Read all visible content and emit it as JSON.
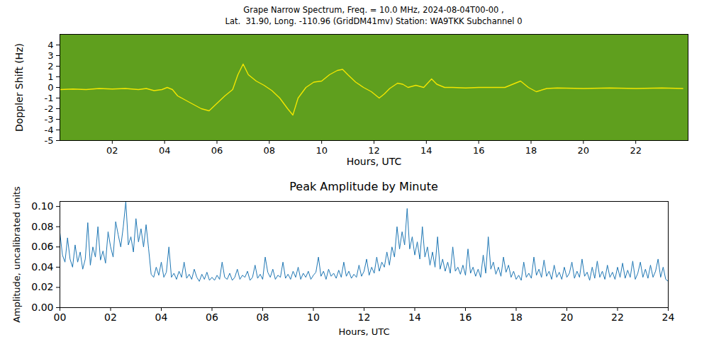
{
  "chart_data": [
    {
      "type": "line",
      "title": "Grape Narrow Spectrum, Freq. = 10.0 MHz, 2024-08-04T00-00 ,",
      "subtitle": "Lat.  31.90, Long. -110.96 (GridDM41mv) Station: WA9TKK Subchannel 0",
      "xlabel": "Hours, UTC",
      "ylabel": "Doppler Shift (Hz)",
      "xlim": [
        0,
        24
      ],
      "xticks": [
        {
          "value": 2,
          "label": "02"
        },
        {
          "value": 4,
          "label": "04"
        },
        {
          "value": 6,
          "label": "06"
        },
        {
          "value": 8,
          "label": "08"
        },
        10,
        12,
        14,
        16,
        18,
        20,
        22
      ],
      "ylim": [
        -5,
        5
      ],
      "yticks": [
        4,
        3,
        2,
        1,
        0,
        -1,
        -2,
        -3,
        -4,
        -5
      ],
      "grid": false,
      "color": "#f2e600",
      "x": [
        0,
        0.5,
        1,
        1.5,
        2,
        2.5,
        3,
        3.3,
        3.6,
        3.9,
        4.1,
        4.3,
        4.5,
        4.8,
        5.1,
        5.4,
        5.7,
        6,
        6.3,
        6.6,
        6.8,
        7,
        7.2,
        7.5,
        7.8,
        8.1,
        8.4,
        8.7,
        8.9,
        9.1,
        9.4,
        9.7,
        10,
        10.3,
        10.6,
        10.8,
        11,
        11.3,
        11.6,
        11.9,
        12.2,
        12.4,
        12.6,
        12.9,
        13.1,
        13.3,
        13.6,
        13.9,
        14.2,
        14.4,
        14.7,
        15,
        15.5,
        16,
        16.5,
        17,
        17.3,
        17.6,
        17.9,
        18.2,
        18.6,
        19,
        20,
        21,
        22,
        23,
        23.8
      ],
      "values": [
        -0.2,
        -0.15,
        -0.2,
        -0.1,
        -0.15,
        -0.1,
        -0.2,
        -0.1,
        -0.3,
        -0.2,
        0,
        -0.2,
        -0.8,
        -1.2,
        -1.6,
        -2,
        -2.2,
        -1.5,
        -0.8,
        -0.2,
        1.2,
        2.2,
        1.2,
        0.6,
        0.2,
        -0.3,
        -1,
        -2,
        -2.6,
        -1,
        0,
        0.5,
        0.6,
        1.2,
        1.6,
        1.7,
        1.2,
        0.5,
        0,
        -0.4,
        -1,
        -0.6,
        -0.1,
        0.4,
        0.3,
        0,
        0.2,
        0,
        0.8,
        0.3,
        0,
        0,
        -0.05,
        0,
        0,
        0,
        0.3,
        0.6,
        0,
        -0.4,
        -0.1,
        -0.05,
        -0.1,
        -0.05,
        -0.1,
        -0.05,
        -0.1
      ]
    },
    {
      "type": "line",
      "title": "Peak Amplitude by Minute",
      "xlabel": "Hours, UTC",
      "ylabel": "Amplitude, uncalibrated units",
      "xlim": [
        0,
        24
      ],
      "xticks": [
        {
          "value": 0,
          "label": "00"
        },
        {
          "value": 2,
          "label": "02"
        },
        {
          "value": 4,
          "label": "04"
        },
        {
          "value": 6,
          "label": "06"
        },
        {
          "value": 8,
          "label": "08"
        },
        10,
        12,
        14,
        16,
        18,
        20,
        22,
        24
      ],
      "ylim": [
        0,
        0.105
      ],
      "yticks": [
        {
          "value": 0,
          "label": "0.00"
        },
        {
          "value": 0.02,
          "label": "0.02"
        },
        {
          "value": 0.04,
          "label": "0.04"
        },
        {
          "value": 0.06,
          "label": "0.06"
        },
        {
          "value": 0.08,
          "label": "0.08"
        },
        {
          "value": 0.1,
          "label": "0.10"
        }
      ],
      "grid": false,
      "color": "#1f77b4",
      "x": [
        0,
        0.1,
        0.2,
        0.3,
        0.4,
        0.5,
        0.6,
        0.7,
        0.8,
        0.9,
        1,
        1.1,
        1.2,
        1.3,
        1.4,
        1.5,
        1.6,
        1.7,
        1.8,
        1.9,
        2,
        2.1,
        2.2,
        2.3,
        2.4,
        2.5,
        2.6,
        2.7,
        2.8,
        2.9,
        3,
        3.1,
        3.2,
        3.3,
        3.4,
        3.5,
        3.6,
        3.7,
        3.8,
        3.9,
        4,
        4.1,
        4.2,
        4.3,
        4.4,
        4.5,
        4.6,
        4.7,
        4.8,
        4.9,
        5,
        5.1,
        5.2,
        5.3,
        5.4,
        5.5,
        5.6,
        5.7,
        5.8,
        5.9,
        6,
        6.1,
        6.2,
        6.3,
        6.4,
        6.5,
        6.6,
        6.7,
        6.8,
        6.9,
        7,
        7.1,
        7.2,
        7.3,
        7.4,
        7.5,
        7.6,
        7.7,
        7.8,
        7.9,
        8,
        8.1,
        8.2,
        8.3,
        8.4,
        8.5,
        8.6,
        8.7,
        8.8,
        8.9,
        9,
        9.1,
        9.2,
        9.3,
        9.4,
        9.5,
        9.6,
        9.7,
        9.8,
        9.9,
        10,
        10.1,
        10.2,
        10.3,
        10.4,
        10.5,
        10.6,
        10.7,
        10.8,
        10.9,
        11,
        11.1,
        11.2,
        11.3,
        11.4,
        11.5,
        11.6,
        11.7,
        11.8,
        11.9,
        12,
        12.1,
        12.2,
        12.3,
        12.4,
        12.5,
        12.6,
        12.7,
        12.8,
        12.9,
        13,
        13.1,
        13.2,
        13.3,
        13.4,
        13.5,
        13.6,
        13.7,
        13.8,
        13.9,
        14,
        14.1,
        14.2,
        14.3,
        14.4,
        14.5,
        14.6,
        14.7,
        14.8,
        14.9,
        15,
        15.1,
        15.2,
        15.3,
        15.4,
        15.5,
        15.6,
        15.7,
        15.8,
        15.9,
        16,
        16.1,
        16.2,
        16.3,
        16.4,
        16.5,
        16.6,
        16.7,
        16.8,
        16.9,
        17,
        17.1,
        17.2,
        17.3,
        17.4,
        17.5,
        17.6,
        17.7,
        17.8,
        17.9,
        18,
        18.1,
        18.2,
        18.3,
        18.4,
        18.5,
        18.6,
        18.7,
        18.8,
        18.9,
        19,
        19.1,
        19.2,
        19.3,
        19.4,
        19.5,
        19.6,
        19.7,
        19.8,
        19.9,
        20,
        20.1,
        20.2,
        20.3,
        20.4,
        20.5,
        20.6,
        20.7,
        20.8,
        20.9,
        21,
        21.1,
        21.2,
        21.3,
        21.4,
        21.5,
        21.6,
        21.7,
        21.8,
        21.9,
        22,
        22.1,
        22.2,
        22.3,
        22.4,
        22.5,
        22.6,
        22.7,
        22.8,
        22.9,
        23,
        23.1,
        23.2,
        23.3,
        23.4,
        23.5,
        23.6,
        23.7,
        23.8,
        23.9,
        24
      ],
      "values": [
        0.074,
        0.052,
        0.045,
        0.069,
        0.048,
        0.04,
        0.062,
        0.045,
        0.055,
        0.038,
        0.048,
        0.084,
        0.042,
        0.06,
        0.05,
        0.08,
        0.047,
        0.056,
        0.044,
        0.075,
        0.06,
        0.05,
        0.085,
        0.072,
        0.06,
        0.08,
        0.105,
        0.062,
        0.07,
        0.055,
        0.088,
        0.065,
        0.078,
        0.06,
        0.082,
        0.058,
        0.033,
        0.03,
        0.04,
        0.032,
        0.045,
        0.03,
        0.035,
        0.06,
        0.03,
        0.034,
        0.028,
        0.036,
        0.03,
        0.045,
        0.029,
        0.033,
        0.028,
        0.038,
        0.03,
        0.026,
        0.033,
        0.028,
        0.035,
        0.027,
        0.03,
        0.027,
        0.032,
        0.028,
        0.045,
        0.03,
        0.028,
        0.034,
        0.027,
        0.03,
        0.038,
        0.028,
        0.032,
        0.03,
        0.036,
        0.027,
        0.03,
        0.042,
        0.029,
        0.033,
        0.028,
        0.05,
        0.035,
        0.03,
        0.038,
        0.028,
        0.032,
        0.03,
        0.045,
        0.029,
        0.033,
        0.028,
        0.036,
        0.03,
        0.04,
        0.028,
        0.034,
        0.03,
        0.036,
        0.028,
        0.032,
        0.035,
        0.05,
        0.031,
        0.036,
        0.028,
        0.038,
        0.031,
        0.034,
        0.029,
        0.037,
        0.03,
        0.045,
        0.031,
        0.036,
        0.029,
        0.033,
        0.03,
        0.042,
        0.031,
        0.036,
        0.048,
        0.032,
        0.04,
        0.034,
        0.05,
        0.036,
        0.045,
        0.04,
        0.055,
        0.042,
        0.06,
        0.05,
        0.08,
        0.058,
        0.075,
        0.062,
        0.098,
        0.058,
        0.07,
        0.052,
        0.065,
        0.048,
        0.08,
        0.05,
        0.06,
        0.042,
        0.055,
        0.04,
        0.07,
        0.038,
        0.048,
        0.036,
        0.045,
        0.034,
        0.06,
        0.036,
        0.04,
        0.033,
        0.042,
        0.032,
        0.058,
        0.034,
        0.04,
        0.031,
        0.038,
        0.03,
        0.052,
        0.034,
        0.07,
        0.038,
        0.045,
        0.033,
        0.04,
        0.031,
        0.05,
        0.035,
        0.042,
        0.03,
        0.036,
        0.028,
        0.032,
        0.027,
        0.045,
        0.03,
        0.034,
        0.029,
        0.05,
        0.032,
        0.038,
        0.03,
        0.047,
        0.031,
        0.036,
        0.028,
        0.042,
        0.03,
        0.035,
        0.028,
        0.04,
        0.03,
        0.034,
        0.045,
        0.029,
        0.036,
        0.03,
        0.048,
        0.031,
        0.035,
        0.027,
        0.04,
        0.029,
        0.046,
        0.03,
        0.036,
        0.028,
        0.042,
        0.03,
        0.035,
        0.028,
        0.04,
        0.03,
        0.044,
        0.029,
        0.037,
        0.03,
        0.046,
        0.028,
        0.034,
        0.045,
        0.03,
        0.038,
        0.029,
        0.042,
        0.03,
        0.036,
        0.048,
        0.03,
        0.04,
        0.028,
        0.026
      ]
    }
  ]
}
